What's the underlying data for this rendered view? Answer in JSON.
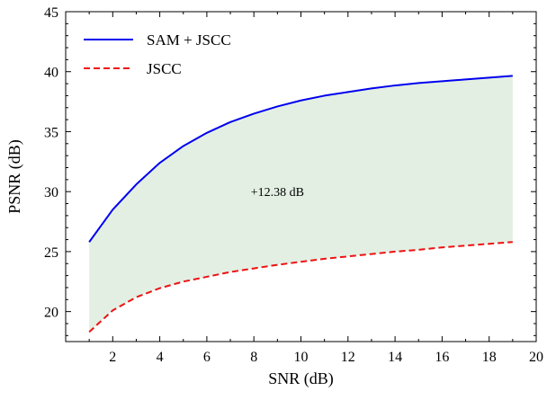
{
  "chart_data": {
    "type": "line",
    "xlabel": "SNR (dB)",
    "ylabel": "PSNR (dB)",
    "xlim": [
      0,
      20
    ],
    "ylim": [
      17.5,
      45
    ],
    "xticks": [
      2,
      4,
      6,
      8,
      10,
      12,
      14,
      16,
      18,
      20
    ],
    "yticks": [
      20,
      25,
      30,
      35,
      40,
      45
    ],
    "grid": false,
    "legend_position": "top-left",
    "x": [
      1,
      2,
      3,
      4,
      5,
      6,
      7,
      8,
      9,
      10,
      11,
      12,
      13,
      14,
      15,
      16,
      17,
      18,
      19
    ],
    "series": [
      {
        "name": "SAM + JSCC",
        "color": "#0000ee",
        "dash": "solid",
        "values": [
          25.8,
          28.5,
          30.6,
          32.4,
          33.8,
          34.9,
          35.8,
          36.5,
          37.1,
          37.6,
          38.0,
          38.3,
          38.6,
          38.85,
          39.05,
          39.2,
          39.35,
          39.5,
          39.65
        ]
      },
      {
        "name": "JSCC",
        "color": "#ee1111",
        "dash": "dashed",
        "values": [
          18.3,
          20.1,
          21.2,
          21.95,
          22.5,
          22.9,
          23.3,
          23.6,
          23.9,
          24.15,
          24.4,
          24.6,
          24.8,
          25.0,
          25.15,
          25.35,
          25.5,
          25.65,
          25.8
        ]
      }
    ],
    "fill_between": {
      "color": "#e3efe3"
    },
    "annotation": {
      "text": "+12.38 dB",
      "x": 9,
      "y": 30
    }
  }
}
